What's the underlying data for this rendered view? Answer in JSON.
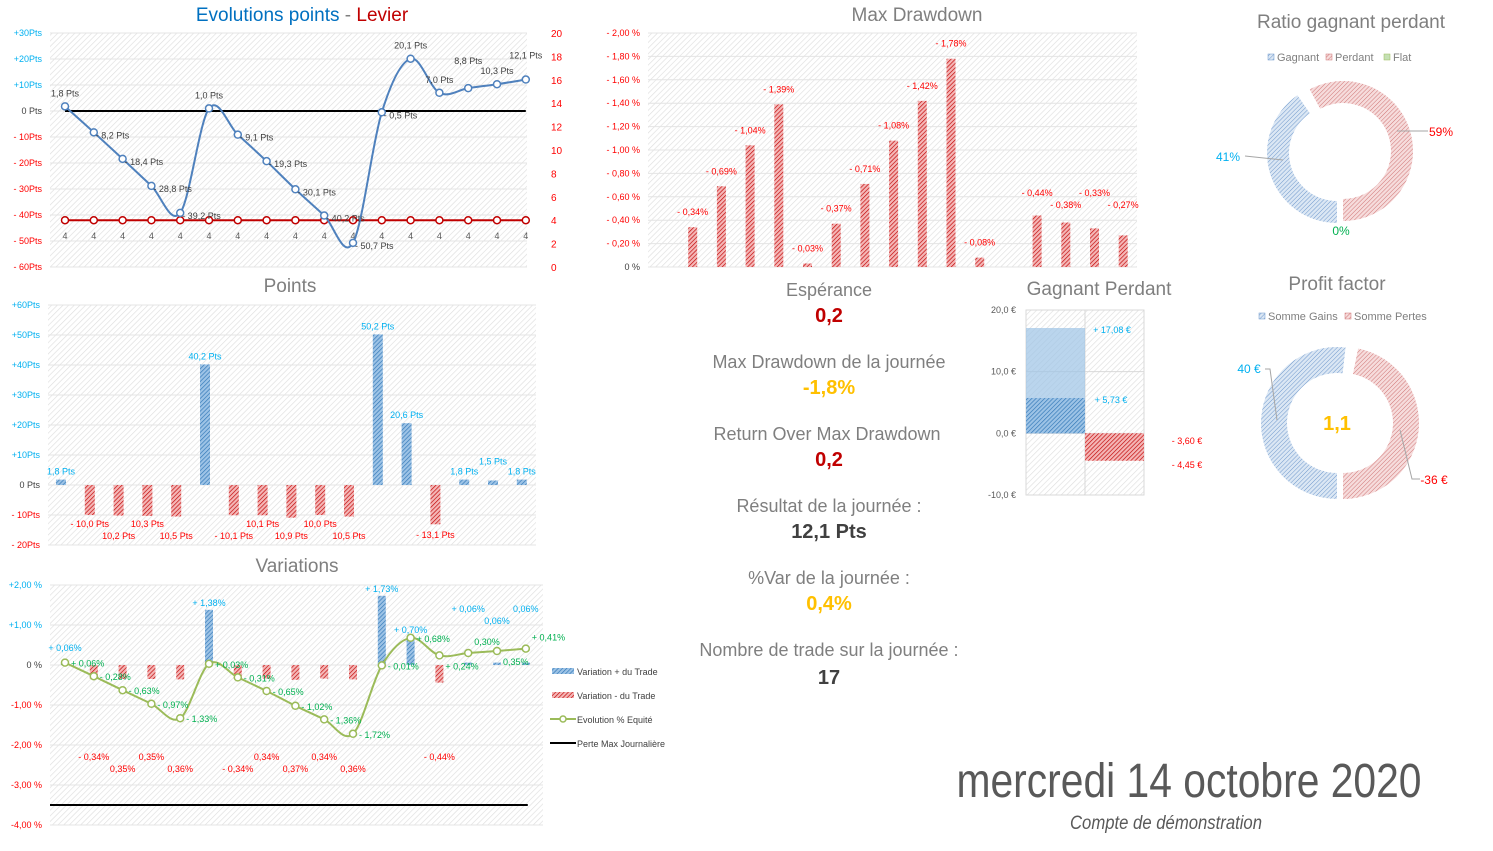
{
  "colors": {
    "blue_label": "#00b0f0",
    "red_label": "#ff0000",
    "green_label": "#00b050",
    "title_blue": "#0070c0",
    "title_red": "#c00000",
    "gray": "#7f7f7f",
    "gold": "#ffc000",
    "dark_red": "#c00000"
  },
  "evolution_chart": {
    "title_part1": "Evolutions points",
    "title_sep": " - ",
    "title_part2": "Levier",
    "left_ticks": [
      "+30Pts",
      "+20Pts",
      "+10Pts",
      "0 Pts",
      "- 10Pts",
      "- 20Pts",
      "- 30Pts",
      "- 40Pts",
      "- 50Pts",
      "- 60Pts"
    ],
    "right_ticks": [
      "20",
      "18",
      "16",
      "14",
      "12",
      "10",
      "8",
      "6",
      "4",
      "2",
      "0"
    ]
  },
  "points_chart": {
    "title": "Points",
    "ticks": [
      "+60Pts",
      "+50Pts",
      "+40Pts",
      "+30Pts",
      "+20Pts",
      "+10Pts",
      "0 Pts",
      "- 10Pts",
      "- 20Pts"
    ]
  },
  "variations_chart": {
    "title": "Variations",
    "ticks": [
      "+2,00 %",
      "+1,00 %",
      "0 %",
      "-1,00 %",
      "-2,00 %",
      "-3,00 %",
      "-4,00 %"
    ],
    "legend": [
      "Variation + du Trade",
      "Variation - du Trade",
      "Evolution % Equité",
      "Perte Max Journalière"
    ]
  },
  "drawdown_chart": {
    "title": "Max Drawdown",
    "ticks": [
      "- 2,00 %",
      "- 1,80 %",
      "- 1,60 %",
      "- 1,40 %",
      "- 1,20 %",
      "- 1,00 %",
      "- 0,80 %",
      "- 0,60 %",
      "- 0,40 %",
      "- 0,20 %",
      "0 %"
    ]
  },
  "ratio_chart": {
    "title": "Ratio gagnant perdant",
    "legend": [
      "Gagnant",
      "Perdant",
      "Flat"
    ],
    "labels": [
      "41%",
      "59%",
      "0%"
    ]
  },
  "gp_chart": {
    "title": "Gagnant Perdant",
    "ticks": [
      "20,0 €",
      "10,0 €",
      "0,0 €",
      "-10,0 €"
    ],
    "labels": [
      "+ 17,08 €",
      "+ 5,73 €",
      "- 3,60 €",
      "- 4,45 €"
    ]
  },
  "pf_chart": {
    "title": "Profit factor",
    "legend": [
      "Somme Gains",
      "Somme Pertes"
    ],
    "labels": [
      "40 €",
      "-36 €"
    ],
    "center": "1,1"
  },
  "stats": [
    {
      "label": "Espérance",
      "value": "0,2",
      "color": "#c00000"
    },
    {
      "label": "Max Drawdown de la journée",
      "value": "-1,8%",
      "color": "#ffc000"
    },
    {
      "label": "Return Over Max Drawdown",
      "value": "0,2",
      "color": "#c00000"
    },
    {
      "label": "Résultat de la journée :",
      "value": "12,1 Pts",
      "color": "#404040"
    },
    {
      "label": "%Var de la journée :",
      "value": "0,4%",
      "color": "#ffc000"
    },
    {
      "label": "Nombre de trade sur la journée :",
      "value": "17",
      "color": "#404040"
    }
  ],
  "footer": {
    "date": "mercredi 14 octobre 2020",
    "account": "Compte de démonstration"
  },
  "chart_data": [
    {
      "type": "line",
      "title": "Evolutions points - Levier",
      "ylim": [
        -60,
        30
      ],
      "ylim_right": [
        0,
        20
      ],
      "series": [
        {
          "name": "Evolution points",
          "values": [
            1.8,
            -8.2,
            -18.4,
            -28.8,
            -39.2,
            1.0,
            -9.1,
            -19.3,
            -30.1,
            -40.2,
            -50.7,
            -0.5,
            20.1,
            7.0,
            8.8,
            10.3,
            12.1
          ],
          "labels": [
            "1,8 Pts",
            "- 8,2 Pts",
            "- 18,4 Pts",
            "- 28,8 Pts",
            "- 39,2 Pts",
            "1,0 Pts",
            "- 9,1 Pts",
            "- 19,3 Pts",
            "- 30,1 Pts",
            "- 40,2 Pts",
            "- 50,7 Pts",
            "- 0,5 Pts",
            "20,1 Pts",
            "7,0 Pts",
            "8,8 Pts",
            "10,3 Pts",
            "12,1 Pts"
          ]
        },
        {
          "name": "Levier",
          "axis": "right",
          "values": [
            4,
            4,
            4,
            4,
            4,
            4,
            4,
            4,
            4,
            4,
            4,
            4,
            4,
            4,
            4,
            4,
            4
          ],
          "labels": [
            "4",
            "4",
            "4",
            "4",
            "4",
            "4",
            "4",
            "4",
            "4",
            "4",
            "4",
            "4",
            "4",
            "4",
            "4",
            "4",
            "4"
          ]
        }
      ],
      "reference_line": 0
    },
    {
      "type": "bar",
      "title": "Points",
      "ylim": [
        -20,
        60
      ],
      "values": [
        1.8,
        -10.0,
        -10.2,
        -10.3,
        -10.5,
        40.2,
        -10.1,
        -10.1,
        -10.9,
        -10.0,
        -10.5,
        50.2,
        20.6,
        -13.1,
        1.8,
        1.5,
        1.8
      ],
      "labels": [
        "1,8 Pts",
        "- 10,0 Pts",
        "10,2 Pts",
        "10,3 Pts",
        "10,5 Pts",
        "40,2 Pts",
        "- 10,1 Pts",
        "10,1 Pts",
        "10,9 Pts",
        "10,0 Pts",
        "10,5 Pts",
        "50,2 Pts",
        "20,6 Pts",
        "- 13,1 Pts",
        "1,8 Pts",
        "1,5 Pts",
        "1,8 Pts"
      ]
    },
    {
      "type": "bar",
      "title": "Variations",
      "ylim": [
        -4,
        2
      ],
      "bars": [
        0.06,
        -0.34,
        -0.35,
        -0.35,
        -0.36,
        1.38,
        -0.34,
        -0.34,
        -0.37,
        -0.34,
        -0.36,
        1.73,
        0.7,
        -0.44,
        0.06,
        0.06,
        0.06
      ],
      "bar_labels": [
        "+ 0,06%",
        "- 0,34%",
        "0,35%",
        "0,35%",
        "0,36%",
        "+ 1,38%",
        "- 0,34%",
        "0,34%",
        "0,37%",
        "0,34%",
        "0,36%",
        "+ 1,73%",
        "+ 0,70%",
        "- 0,44%",
        "+ 0,06%",
        "0,06%",
        "0,06%"
      ],
      "equity": [
        0.06,
        -0.28,
        -0.63,
        -0.97,
        -1.33,
        0.03,
        -0.31,
        -0.65,
        -1.02,
        -1.36,
        -1.72,
        -0.01,
        0.68,
        0.24,
        0.3,
        0.35,
        0.41
      ],
      "equity_labels": [
        "+ 0,06%",
        "- 0,28%",
        "- 0,63%",
        "- 0,97%",
        "- 1,33%",
        "+ 0,03%",
        "- 0,31%",
        "- 0,65%",
        "- 1,02%",
        "- 1,36%",
        "- 1,72%",
        "- 0,01%",
        "+ 0,68%",
        "+ 0,24%",
        "0,30%",
        "0,35%",
        "+ 0,41%"
      ],
      "max_daily_loss": -3.5
    },
    {
      "type": "bar",
      "title": "Max Drawdown",
      "ylim": [
        0,
        2
      ],
      "values": [
        0,
        0.34,
        0.69,
        1.04,
        1.39,
        0.03,
        0.37,
        0.71,
        1.08,
        1.42,
        1.78,
        0.08,
        0,
        0.44,
        0.38,
        0.33,
        0.27
      ],
      "labels": [
        "",
        "- 0,34%",
        "- 0,69%",
        "- 1,04%",
        "- 1,39%",
        "- 0,03%",
        "- 0,37%",
        "- 0,71%",
        "- 1,08%",
        "- 1,42%",
        "- 1,78%",
        "- 0,08%",
        "",
        "- 0,44%",
        "- 0,38%",
        "- 0,33%",
        "- 0,27%"
      ]
    },
    {
      "type": "pie",
      "title": "Ratio gagnant perdant",
      "categories": [
        "Gagnant",
        "Perdant",
        "Flat"
      ],
      "values": [
        41,
        59,
        0
      ]
    },
    {
      "type": "bar",
      "title": "Gagnant Perdant",
      "ylim": [
        -10,
        20
      ],
      "gains": [
        17.08,
        5.73
      ],
      "losses": [
        -4.45,
        -3.6
      ]
    },
    {
      "type": "pie",
      "title": "Profit factor",
      "categories": [
        "Somme Gains",
        "Somme Pertes"
      ],
      "values": [
        40,
        36
      ]
    }
  ]
}
